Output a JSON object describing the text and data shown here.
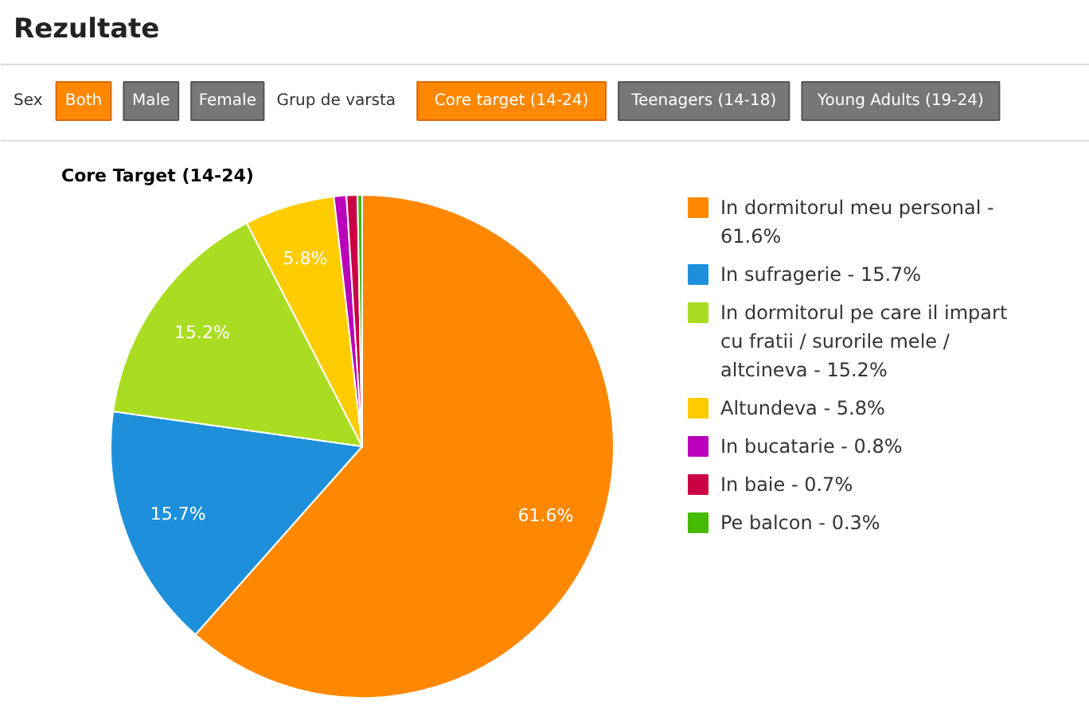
{
  "chart_data": {
    "type": "pie",
    "title": "Core Target (14-24)",
    "categories": [
      "In dormitorul meu personal - 61.6%",
      "In sufragerie - 15.7%",
      "In dormitorul pe care il impart cu fratii / surorile mele / altcineva - 15.2%",
      "Altundeva - 5.8%",
      "In bucatarie - 0.8%",
      "In baie - 0.7%",
      "Pe balcon - 0.3%"
    ],
    "values": [
      61.6,
      15.7,
      15.2,
      5.8,
      0.8,
      0.7,
      0.3
    ],
    "colors": [
      "#ff8800",
      "#1e90db",
      "#aadd22",
      "#ffcc00",
      "#bb00bb",
      "#cc0044",
      "#44bb00"
    ],
    "value_labels": [
      "61.6%",
      "15.7%",
      "15.2%",
      "5.8%",
      null,
      null,
      null
    ],
    "legend": "right",
    "annotations": [
      "Rezultate",
      "Sex",
      "Both",
      "Male",
      "Female",
      "Grup de varsta",
      "Core target (14-24)",
      "Teenagers (14-18)",
      "Young Adults (19-24)"
    ]
  }
}
